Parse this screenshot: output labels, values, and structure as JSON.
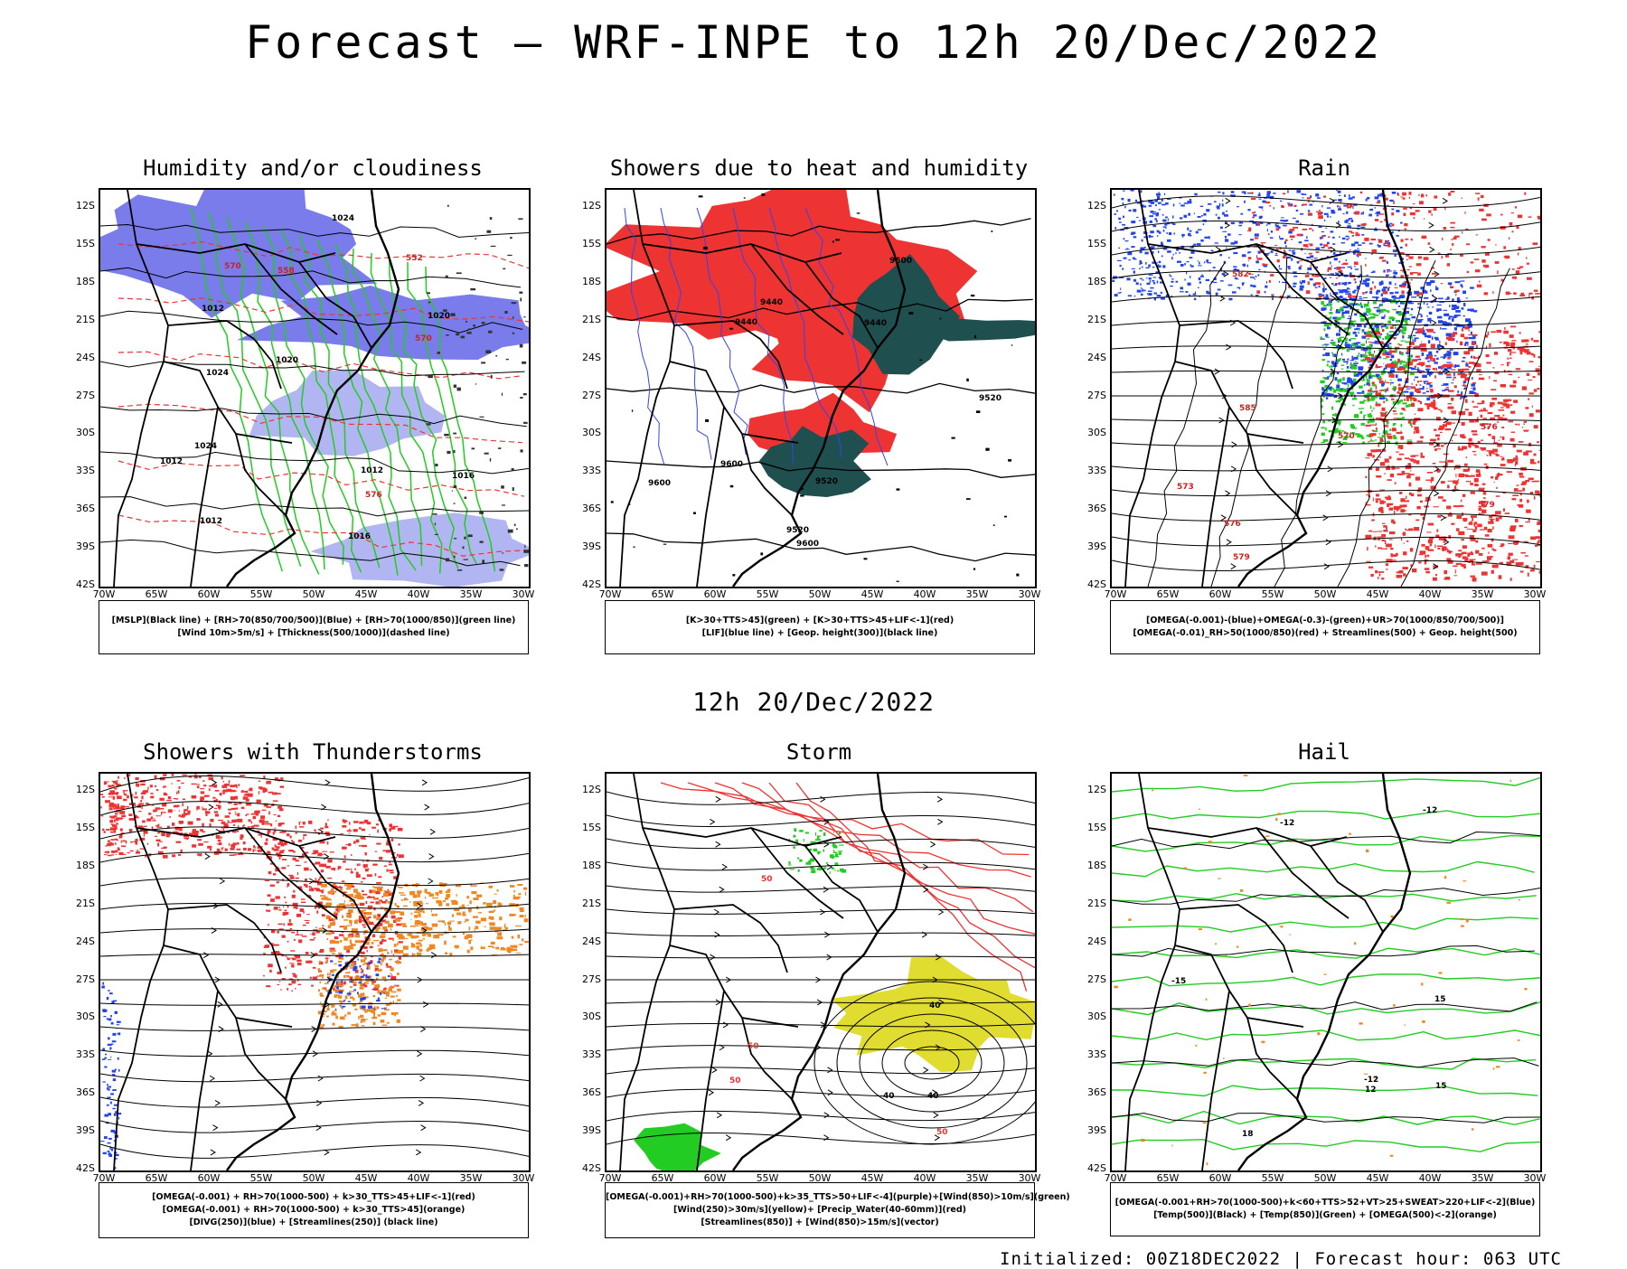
{
  "title": "Forecast — WRF-INPE to 12h 20/Dec/2022",
  "mid_date": "12h 20/Dec/2022",
  "footer": "Initialized: 00Z18DEC2022 | Forecast hour: 063 UTC",
  "lat_labels": [
    "12S",
    "15S",
    "18S",
    "21S",
    "24S",
    "27S",
    "30S",
    "33S",
    "36S",
    "39S",
    "42S"
  ],
  "lon_labels": [
    "70W",
    "65W",
    "60W",
    "55W",
    "50W",
    "45W",
    "40W",
    "35W",
    "30W"
  ],
  "panels": [
    {
      "title": "Humidity and/or cloudiness",
      "legend": [
        "[MSLP](Black line) + [RH>70(850/700/500)](Blue) + [RH>70(1000/850)](green line)",
        "[Wind 10m>5m/s] + [Thickness(500/1000)](dashed line)"
      ],
      "contour_labels": [
        "1012",
        "1012",
        "1012",
        "1012",
        "1016",
        "1016",
        "1020",
        "1024",
        "1024",
        "1024",
        "1020",
        "570",
        "570",
        "552",
        "558",
        "576"
      ]
    },
    {
      "title": "Showers due to heat and humidity",
      "legend": [
        "[K>30+TTS>45](green) + [K>30+TTS>45+LIF<-1](red)",
        "[LIF](blue line) + [Geop. height(300)](black line)"
      ],
      "contour_labels": [
        "9600",
        "9600",
        "9600",
        "9600",
        "9520",
        "9520",
        "9520",
        "9440",
        "9440",
        "9440"
      ]
    },
    {
      "title": "Rain",
      "legend": [
        "[OMEGA(-0.001)-(blue)+OMEGA(-0.3)-(green)+UR>70(1000/850/700/500)]",
        "[OMEGA(-0.01)_RH>50(1000/850)(red) + Streamlines(500) + Geop. height(500)"
      ],
      "contour_labels": [
        "585",
        "582",
        "579",
        "579",
        "576",
        "573",
        "570",
        "576"
      ]
    },
    {
      "title": "Showers with Thunderstorms",
      "legend": [
        "[OMEGA(-0.001) + RH>70(1000-500) + k>30_TTS>45+LIF<-1](red)",
        "[OMEGA(-0.001) + RH>70(1000-500) + k>30_TTS>45](orange)",
        "[DIVG(250)](blue) + [Streamlines(250)] (black line)"
      ],
      "contour_labels": []
    },
    {
      "title": "Storm",
      "legend": [
        "[OMEGA(-0.001)+RH>70(1000-500)+k>35_TTS>50+LIF<-4](purple)+[Wind(850)>10m/s](green)",
        "[Wind(250)>30m/s](yellow)+ [Precip_Water(40-60mm)](red)",
        "[Streamlines(850)] + [Wind(850)>15m/s](vector)"
      ],
      "contour_labels": [
        "50",
        "40",
        "50",
        "50",
        "40",
        "50",
        "40"
      ]
    },
    {
      "title": "Hail",
      "legend": [
        "[OMEGA(-0.001+RH>70(1000-500)+k<60+TTS>52+VT>25+SWEAT>220+LIF<-2](Blue)",
        "[Temp(500)](Black) + [Temp(850)](Green) + [OMEGA(500)<-2](orange)"
      ],
      "contour_labels": [
        "-12",
        "-12",
        "-12",
        "15",
        "12",
        "15",
        "18",
        "-15"
      ]
    }
  ],
  "colors": {
    "blue_humidity": "#6a6ee8",
    "light_blue": "#a9aef2",
    "green": "#22cc22",
    "red": "#ee3333",
    "dark_teal": "#1f4f4f",
    "orange": "#ee8822",
    "yellow": "#e0dc30",
    "blue": "#2244ee"
  }
}
